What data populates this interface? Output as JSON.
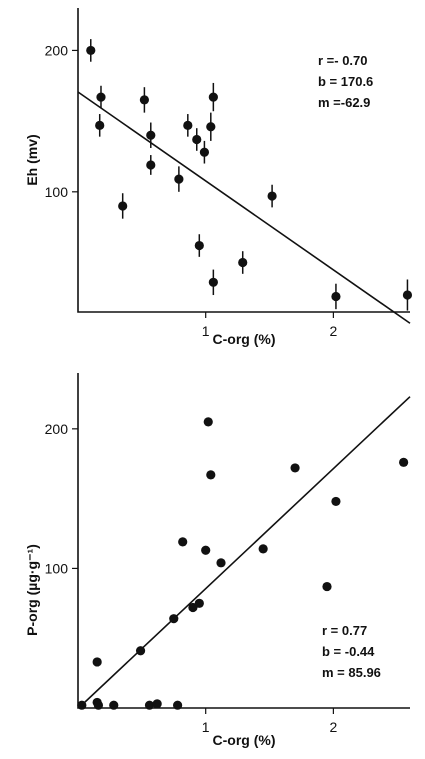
{
  "chart_data": [
    {
      "type": "scatter",
      "xlabel": "C-org (%)",
      "ylabel": "Eh (mv)",
      "xlim": [
        0,
        2.6
      ],
      "ylim": [
        15,
        230
      ],
      "xticks": [
        1,
        2
      ],
      "yticks": [
        100,
        200
      ],
      "error_bars": true,
      "stats": [
        "r =- 0.70",
        "b = 170.6",
        "m =-62.9"
      ],
      "fit_line": {
        "intercept": 170.6,
        "slope": -62.9
      },
      "points": [
        {
          "x": 0.1,
          "y": 200,
          "err": 8
        },
        {
          "x": 0.17,
          "y": 147,
          "err": 8
        },
        {
          "x": 0.18,
          "y": 167,
          "err": 8
        },
        {
          "x": 0.35,
          "y": 90,
          "err": 9
        },
        {
          "x": 0.52,
          "y": 165,
          "err": 9
        },
        {
          "x": 0.57,
          "y": 140,
          "err": 9
        },
        {
          "x": 0.57,
          "y": 119,
          "err": 7
        },
        {
          "x": 0.79,
          "y": 109,
          "err": 9
        },
        {
          "x": 0.86,
          "y": 147,
          "err": 8
        },
        {
          "x": 0.93,
          "y": 137,
          "err": 8
        },
        {
          "x": 0.95,
          "y": 62,
          "err": 8
        },
        {
          "x": 0.99,
          "y": 128,
          "err": 8
        },
        {
          "x": 1.04,
          "y": 146,
          "err": 10
        },
        {
          "x": 1.06,
          "y": 167,
          "err": 10
        },
        {
          "x": 1.06,
          "y": 36,
          "err": 9
        },
        {
          "x": 1.29,
          "y": 50,
          "err": 8
        },
        {
          "x": 1.52,
          "y": 97,
          "err": 8
        },
        {
          "x": 2.02,
          "y": 26,
          "err": 9
        },
        {
          "x": 2.58,
          "y": 27,
          "err": 11
        }
      ]
    },
    {
      "type": "scatter",
      "xlabel": "C-org (%)",
      "ylabel": "P-org (µg·g⁻¹)",
      "xlim": [
        0,
        2.6
      ],
      "ylim": [
        0,
        240
      ],
      "xticks": [
        1,
        2
      ],
      "yticks": [
        100,
        200
      ],
      "stats": [
        "r = 0.77",
        "b = -0.44",
        "m = 85.96"
      ],
      "fit_line": {
        "intercept": -0.44,
        "slope": 85.96
      },
      "points": [
        {
          "x": 0.03,
          "y": 2
        },
        {
          "x": 0.15,
          "y": 4
        },
        {
          "x": 0.15,
          "y": 33
        },
        {
          "x": 0.16,
          "y": 2
        },
        {
          "x": 0.28,
          "y": 2
        },
        {
          "x": 0.49,
          "y": 41
        },
        {
          "x": 0.56,
          "y": 2
        },
        {
          "x": 0.62,
          "y": 3
        },
        {
          "x": 0.75,
          "y": 64
        },
        {
          "x": 0.78,
          "y": 2
        },
        {
          "x": 0.82,
          "y": 119
        },
        {
          "x": 0.9,
          "y": 72
        },
        {
          "x": 0.95,
          "y": 75
        },
        {
          "x": 1.0,
          "y": 113
        },
        {
          "x": 1.02,
          "y": 205
        },
        {
          "x": 1.04,
          "y": 167
        },
        {
          "x": 1.12,
          "y": 104
        },
        {
          "x": 1.45,
          "y": 114
        },
        {
          "x": 1.7,
          "y": 172
        },
        {
          "x": 1.95,
          "y": 87
        },
        {
          "x": 2.02,
          "y": 148
        },
        {
          "x": 2.55,
          "y": 176
        }
      ]
    }
  ]
}
